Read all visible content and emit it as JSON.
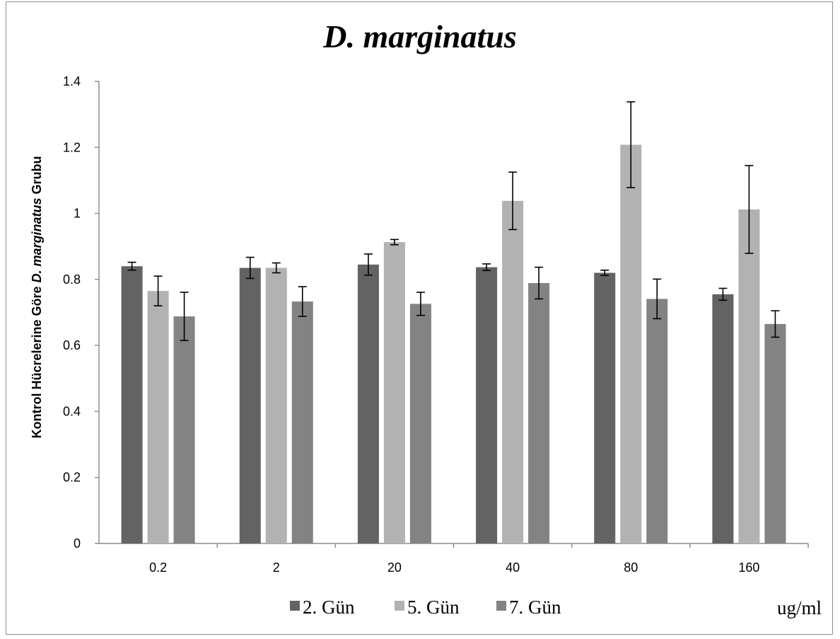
{
  "chart_data": {
    "type": "bar",
    "title": "D. marginatus",
    "ylabel_parts": [
      {
        "text": "Kontrol Hücrelerine Göre ",
        "italic": false
      },
      {
        "text": "D. marginatus",
        "italic": true
      },
      {
        "text": " Grubu",
        "italic": false
      }
    ],
    "xlabel": "ug/ml",
    "categories": [
      "0.2",
      "2",
      "20",
      "40",
      "80",
      "160"
    ],
    "ylim": [
      0,
      1.4
    ],
    "yticks": [
      0,
      0.2,
      0.4,
      0.6,
      0.8,
      1,
      1.2,
      1.4
    ],
    "grid": false,
    "legend_position": "bottom",
    "series": [
      {
        "name": "2. Gün",
        "color": "#636363",
        "values": [
          0.84,
          0.835,
          0.845,
          0.837,
          0.82,
          0.755
        ],
        "errors": [
          0.012,
          0.032,
          0.032,
          0.01,
          0.008,
          0.018
        ]
      },
      {
        "name": "5. Gün",
        "color": "#b2b2b2",
        "values": [
          0.765,
          0.835,
          0.913,
          1.038,
          1.208,
          1.012
        ],
        "errors": [
          0.045,
          0.015,
          0.008,
          0.087,
          0.13,
          0.133
        ]
      },
      {
        "name": "7. Gün",
        "color": "#838383",
        "values": [
          0.688,
          0.733,
          0.726,
          0.789,
          0.741,
          0.665
        ],
        "errors": [
          0.073,
          0.045,
          0.035,
          0.048,
          0.06,
          0.04
        ]
      }
    ]
  }
}
